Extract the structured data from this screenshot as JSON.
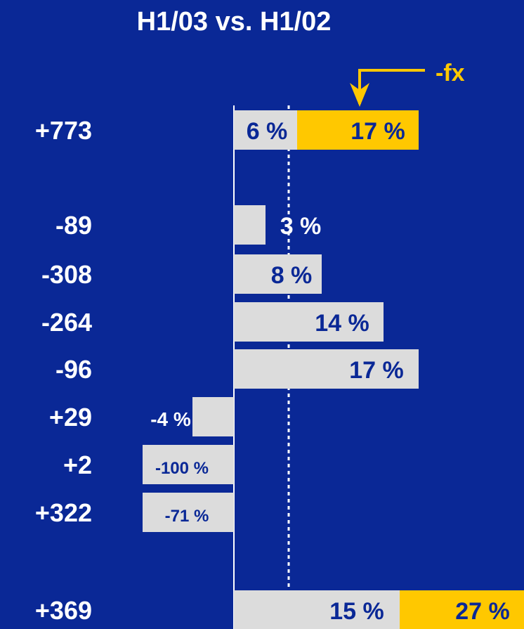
{
  "chart_data": {
    "type": "bar",
    "title": "H1/03 vs. H1/02",
    "annotation": "-fx",
    "colors": {
      "background": "#0a2896",
      "bar": "#dcdcdc",
      "highlight": "#ffc800",
      "text_dark": "#0a2896",
      "text_light": "#ffffff"
    },
    "rows": [
      {
        "category": "+773",
        "value": 6,
        "label": "6 %",
        "fx_value": 17,
        "fx_label": "17 %"
      },
      {
        "category": "-89",
        "value": 3,
        "label": "3 %"
      },
      {
        "category": "-308",
        "value": 8,
        "label": "8 %"
      },
      {
        "category": "-264",
        "value": 14,
        "label": "14 %"
      },
      {
        "category": "-96",
        "value": 17,
        "label": "17 %"
      },
      {
        "category": "+29",
        "value": -4,
        "label": "-4 %"
      },
      {
        "category": "+2",
        "value": -100,
        "label": "-100  %"
      },
      {
        "category": "+322",
        "value": -71,
        "label": "-71  %"
      },
      {
        "category": "+369",
        "value": 15,
        "label": "15 %",
        "fx_value": 27,
        "fx_label": "27 %"
      }
    ]
  }
}
